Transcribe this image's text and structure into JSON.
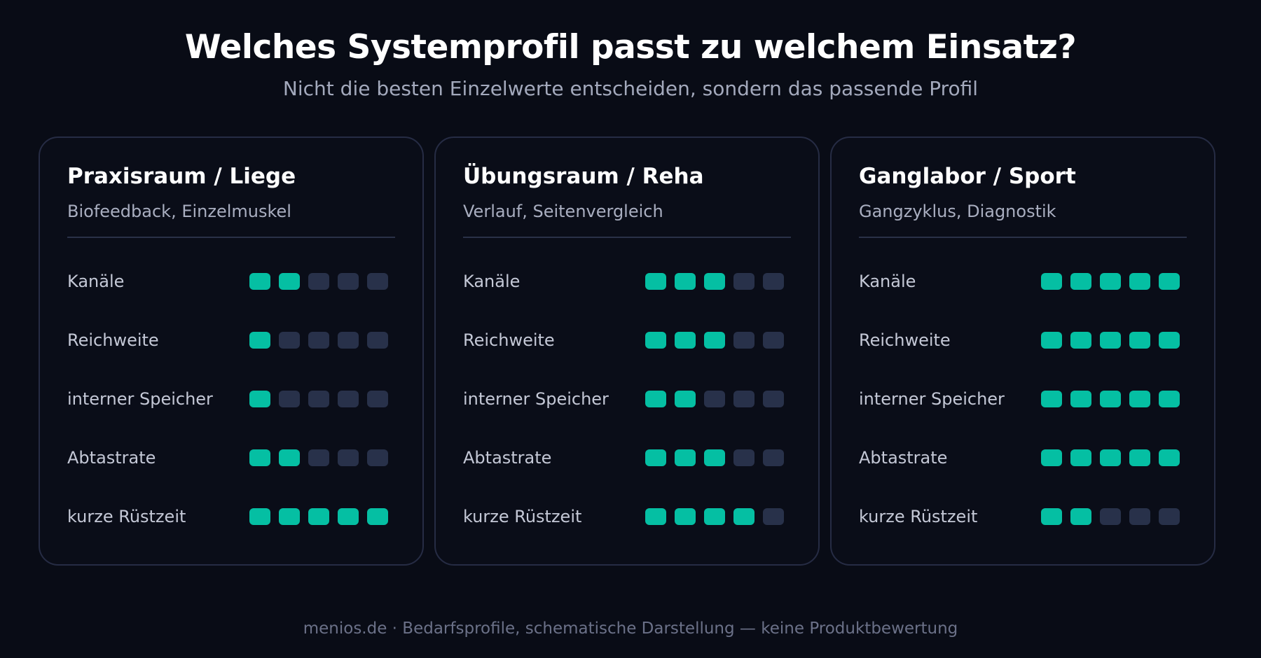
{
  "header": {
    "title": "Welches Systemprofil passt zu welchem Einsatz?",
    "subtitle": "Nicht die besten Einzelwerte entscheiden, sondern das passende Profil"
  },
  "colors": {
    "background": "#090c16",
    "accent": "#05bfa3",
    "inactive_dot": "#28314a",
    "card_border": "#262c44"
  },
  "max_level": 5,
  "cards": [
    {
      "title": "Praxisraum / Liege",
      "subtitle": "Biofeedback, Einzelmuskel",
      "rows": [
        {
          "label": "Kanäle",
          "level": 2
        },
        {
          "label": "Reichweite",
          "level": 1
        },
        {
          "label": "interner Speicher",
          "level": 1
        },
        {
          "label": "Abtastrate",
          "level": 2
        },
        {
          "label": "kurze Rüstzeit",
          "level": 5
        }
      ]
    },
    {
      "title": "Übungsraum / Reha",
      "subtitle": "Verlauf, Seitenvergleich",
      "rows": [
        {
          "label": "Kanäle",
          "level": 3
        },
        {
          "label": "Reichweite",
          "level": 3
        },
        {
          "label": "interner Speicher",
          "level": 2
        },
        {
          "label": "Abtastrate",
          "level": 3
        },
        {
          "label": "kurze Rüstzeit",
          "level": 4
        }
      ]
    },
    {
      "title": "Ganglabor / Sport",
      "subtitle": "Gangzyklus, Diagnostik",
      "rows": [
        {
          "label": "Kanäle",
          "level": 5
        },
        {
          "label": "Reichweite",
          "level": 5
        },
        {
          "label": "interner Speicher",
          "level": 5
        },
        {
          "label": "Abtastrate",
          "level": 5
        },
        {
          "label": "kurze Rüstzeit",
          "level": 2
        }
      ]
    }
  ],
  "footer": {
    "text": "menios.de · Bedarfsprofile, schematische Darstellung — keine Produktbewertung"
  }
}
